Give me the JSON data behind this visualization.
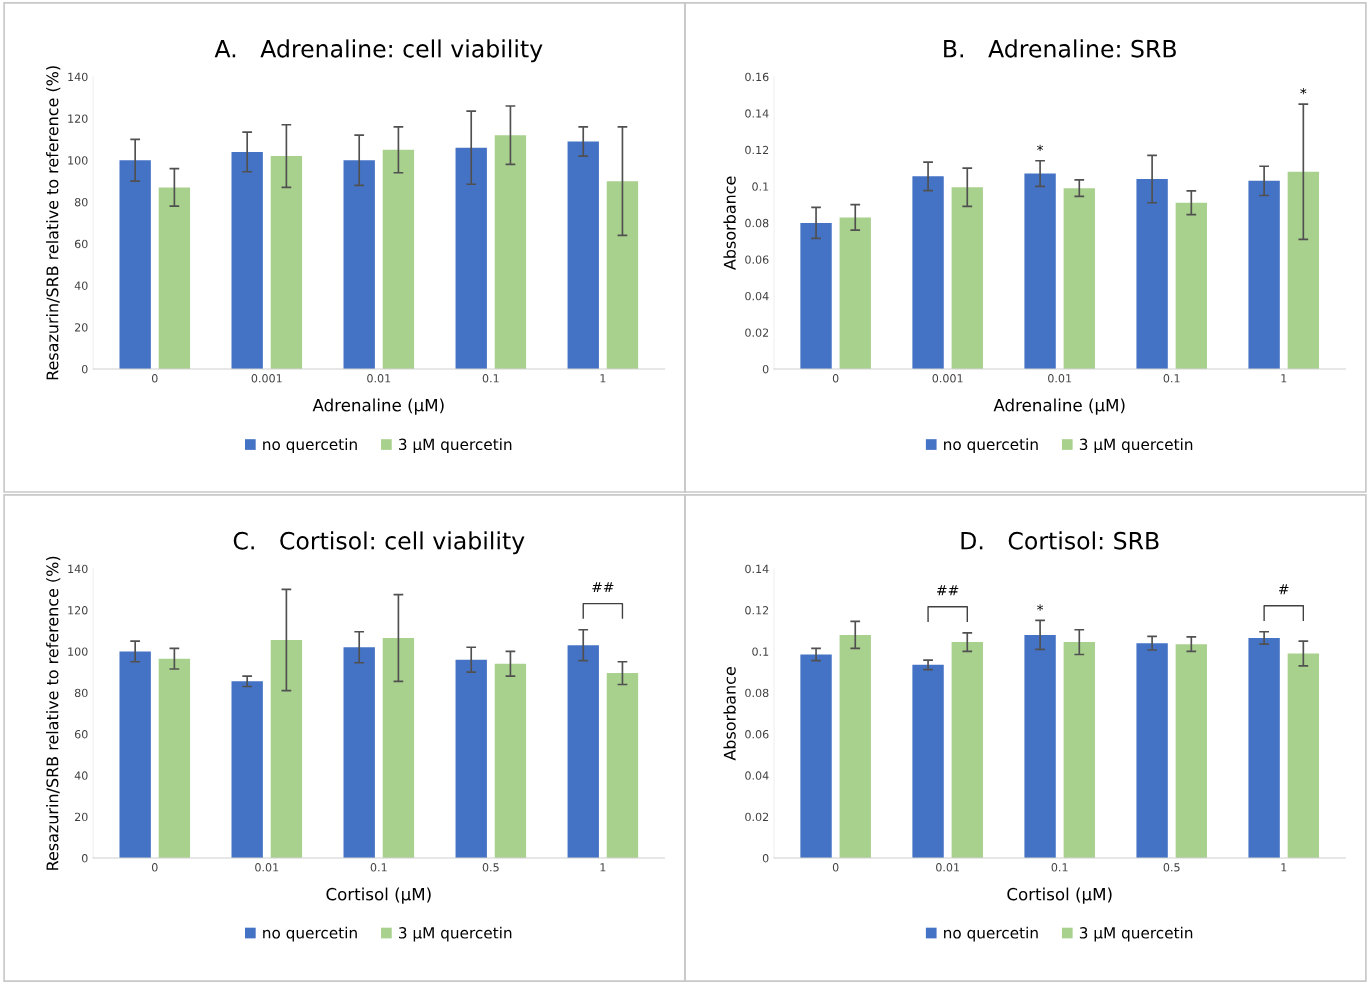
{
  "chart_data": [
    {
      "type": "bar",
      "title": "A.   Adrenaline: cell viability",
      "xlabel": "Adrenaline (µM)",
      "ylabel": "Resazurin/SRB relative to reference (%)",
      "categories": [
        "0",
        "0.001",
        "0.01",
        "0.1",
        "1"
      ],
      "ylim": [
        0,
        140
      ],
      "yticks": [
        0,
        20,
        40,
        60,
        80,
        100,
        120,
        140
      ],
      "legend": "bottom",
      "grid": false,
      "series": [
        {
          "name": "no quercetin",
          "color": "#4472c4",
          "values": [
            100,
            104,
            100,
            106,
            109
          ],
          "errors": [
            10,
            9.5,
            12,
            17.5,
            7
          ]
        },
        {
          "name": "3 µM quercetin",
          "color": "#a9d18e",
          "values": [
            87,
            102,
            105,
            112,
            90
          ],
          "errors": [
            9,
            15,
            11,
            14,
            26
          ]
        }
      ]
    },
    {
      "type": "bar",
      "title": "B.   Adrenaline: SRB",
      "xlabel": "Adrenaline (µM)",
      "ylabel": "Absorbance",
      "categories": [
        "0",
        "0.001",
        "0.01",
        "0.1",
        "1"
      ],
      "ylim": [
        0,
        0.16
      ],
      "yticks": [
        0,
        0.02,
        0.04,
        0.06,
        0.08,
        0.1,
        0.12,
        0.14,
        0.16
      ],
      "legend": "bottom",
      "grid": false,
      "series": [
        {
          "name": "no quercetin",
          "color": "#4472c4",
          "values": [
            0.08,
            0.1055,
            0.107,
            0.104,
            0.103
          ],
          "errors": [
            0.0085,
            0.0078,
            0.007,
            0.013,
            0.008
          ]
        },
        {
          "name": "3 µM quercetin",
          "color": "#a9d18e",
          "values": [
            0.083,
            0.0995,
            0.099,
            0.091,
            0.108
          ],
          "errors": [
            0.007,
            0.0105,
            0.0045,
            0.0065,
            0.037
          ]
        }
      ],
      "annotations": [
        "*",
        "*"
      ]
    },
    {
      "type": "bar",
      "title": "C.   Cortisol: cell viability",
      "xlabel": "Cortisol (µM)",
      "ylabel": "Resazurin/SRB relative to reference (%)",
      "categories": [
        "0",
        "0.01",
        "0.1",
        "0.5",
        "1"
      ],
      "ylim": [
        0,
        140
      ],
      "yticks": [
        0,
        20,
        40,
        60,
        80,
        100,
        120,
        140
      ],
      "legend": "bottom",
      "grid": false,
      "series": [
        {
          "name": "no quercetin",
          "color": "#4472c4",
          "values": [
            100,
            85.5,
            102,
            96,
            103
          ],
          "errors": [
            5,
            2.5,
            7.5,
            6,
            7.5
          ]
        },
        {
          "name": "3 µM quercetin",
          "color": "#a9d18e",
          "values": [
            96.5,
            105.5,
            106.5,
            94,
            89.5
          ],
          "errors": [
            5,
            24.5,
            21,
            6,
            5.5
          ]
        }
      ],
      "annotations": [
        "##"
      ]
    },
    {
      "type": "bar",
      "title": "D.   Cortisol: SRB",
      "xlabel": "Cortisol (µM)",
      "ylabel": "Absorbance",
      "categories": [
        "0",
        "0.01",
        "0.1",
        "0.5",
        "1"
      ],
      "ylim": [
        0,
        0.14
      ],
      "yticks": [
        0,
        0.02,
        0.04,
        0.06,
        0.08,
        0.1,
        0.12,
        0.14
      ],
      "legend": "bottom",
      "grid": false,
      "series": [
        {
          "name": "no quercetin",
          "color": "#4472c4",
          "values": [
            0.0985,
            0.0935,
            0.108,
            0.104,
            0.1065
          ],
          "errors": [
            0.003,
            0.0023,
            0.007,
            0.0033,
            0.003
          ]
        },
        {
          "name": "3 µM quercetin",
          "color": "#a9d18e",
          "values": [
            0.108,
            0.1045,
            0.1045,
            0.1035,
            0.099
          ],
          "errors": [
            0.0065,
            0.0045,
            0.006,
            0.0035,
            0.006
          ]
        }
      ],
      "annotations": [
        "##",
        "*",
        "#"
      ]
    }
  ]
}
